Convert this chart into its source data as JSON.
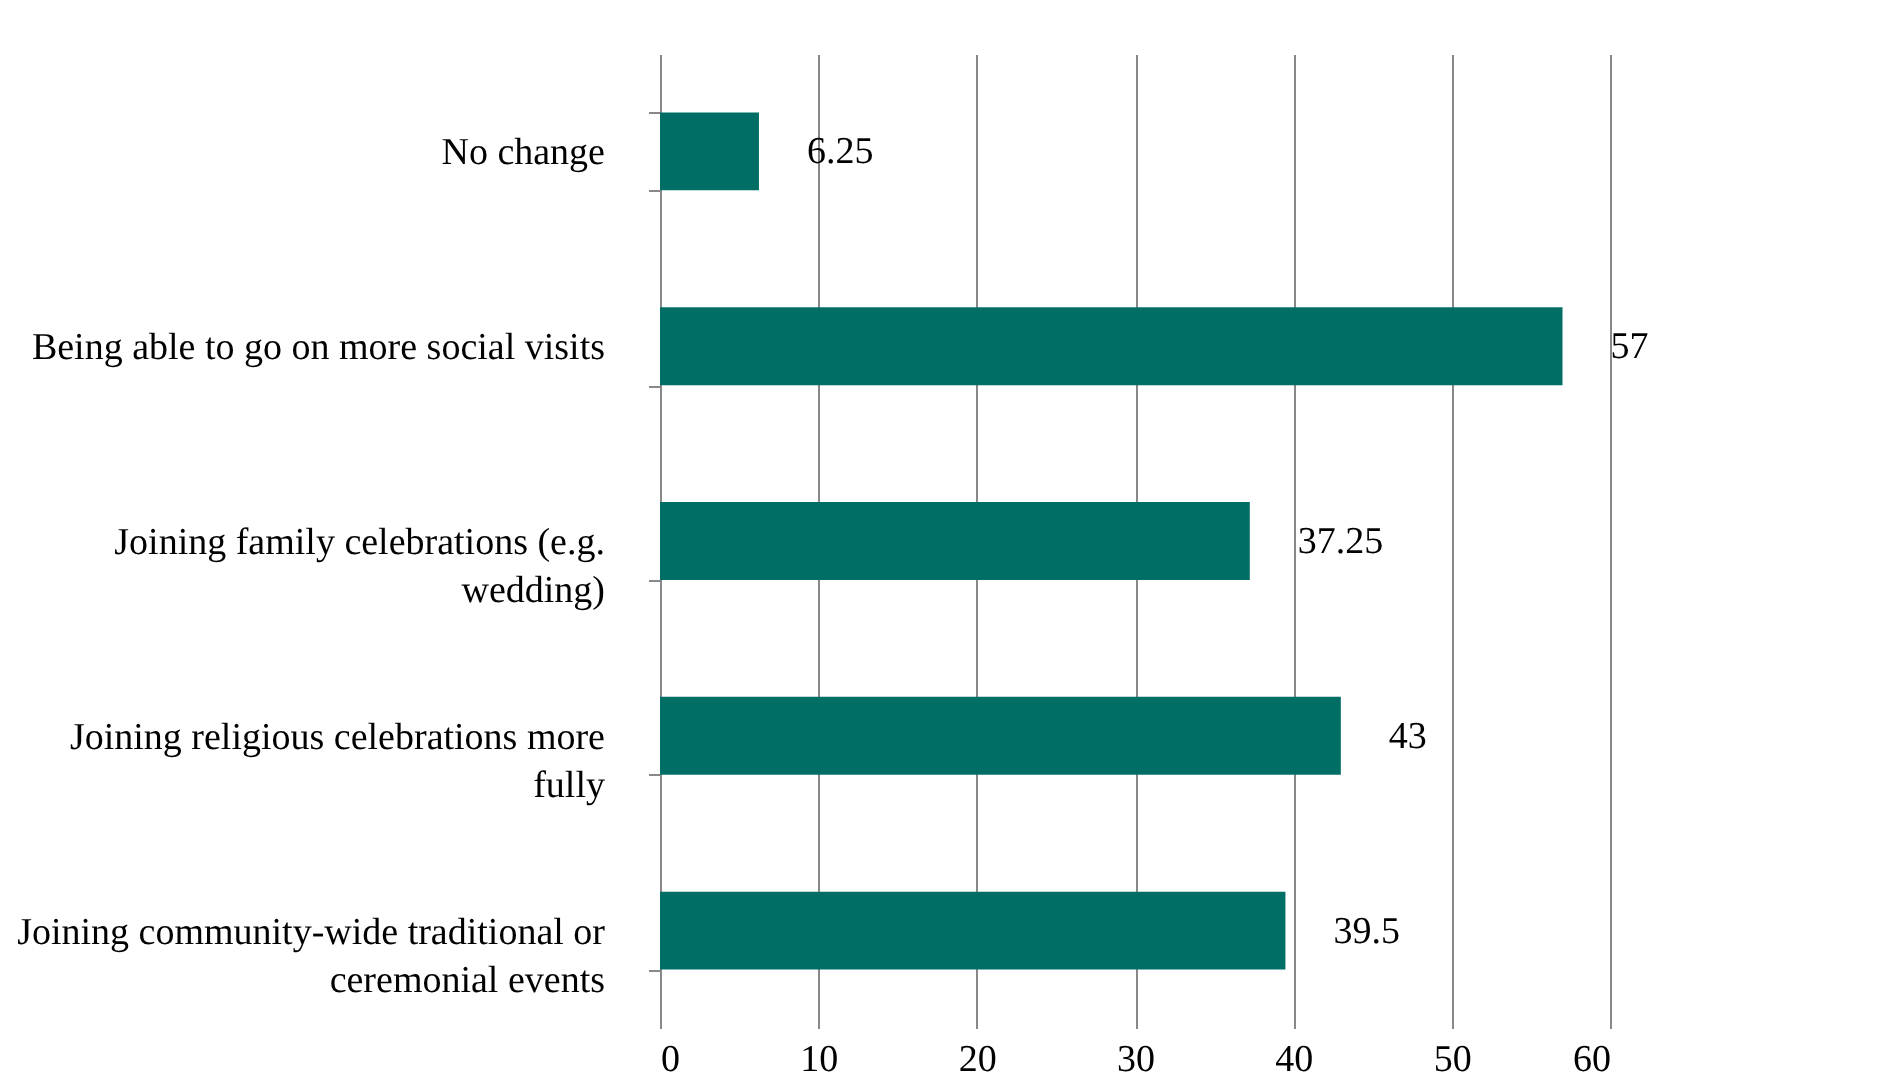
{
  "chart_data": {
    "type": "bar",
    "orientation": "horizontal",
    "categories": [
      "No change",
      "Being able to go on more social visits",
      "Joining family celebrations (e.g. wedding)",
      "Joining religious celebrations more fully",
      "Joining community-wide traditional or ceremonial events"
    ],
    "values": [
      6.25,
      57,
      37.25,
      43,
      39.5
    ],
    "color": "#006e65",
    "xlim": [
      0,
      60
    ],
    "xticks": [
      0,
      10,
      20,
      30,
      40,
      50,
      60
    ],
    "grid": "x",
    "data_labels": true
  }
}
